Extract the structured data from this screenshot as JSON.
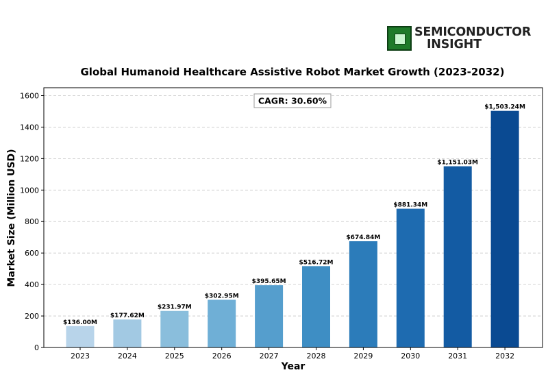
{
  "logo": {
    "line1": "SEMICONDUCTOR",
    "line2": "INSIGHT",
    "colors": {
      "mark": "#1f7a2a",
      "text": "#222222"
    }
  },
  "chart_data": {
    "type": "bar",
    "title": "Global Humanoid Healthcare Assistive Robot Market Growth (2023-2032)",
    "xlabel": "Year",
    "ylabel": "Market Size (Million USD)",
    "categories": [
      "2023",
      "2024",
      "2025",
      "2026",
      "2027",
      "2028",
      "2029",
      "2030",
      "2031",
      "2032"
    ],
    "values": [
      136.0,
      177.62,
      231.97,
      302.95,
      395.65,
      516.72,
      674.84,
      881.34,
      1151.03,
      1503.24
    ],
    "data_labels": [
      "$136.00M",
      "$177.62M",
      "$231.97M",
      "$302.95M",
      "$395.65M",
      "$516.72M",
      "$674.84M",
      "$881.34M",
      "$1,151.03M",
      "$1,503.24M"
    ],
    "colors": [
      "#b8d4ea",
      "#a2c9e3",
      "#8abedc",
      "#6fafd6",
      "#559ecd",
      "#3e8ec4",
      "#2c7cba",
      "#1e6bb0",
      "#135ba3",
      "#0a4a92"
    ],
    "annotation": "CAGR: 30.60%",
    "ylim": [
      0,
      1650
    ],
    "yticks": [
      0,
      200,
      400,
      600,
      800,
      1000,
      1200,
      1400,
      1600
    ],
    "grid": "horizontal dashed"
  }
}
